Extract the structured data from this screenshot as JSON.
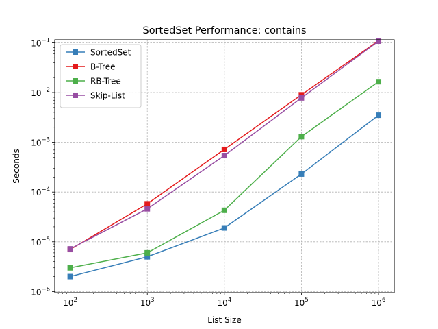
{
  "chart_data": {
    "type": "line",
    "title": "SortedSet Performance: contains",
    "xlabel": "List Size",
    "ylabel": "Seconds",
    "x_scale": "log",
    "y_scale": "log",
    "xlim": [
      63,
      1600000
    ],
    "ylim": [
      9.5e-07,
      0.115
    ],
    "x": [
      100,
      1000,
      10000,
      100000,
      1000000
    ],
    "x_ticks": [
      {
        "value": 100,
        "base": "10",
        "exp": "2"
      },
      {
        "value": 1000,
        "base": "10",
        "exp": "3"
      },
      {
        "value": 10000,
        "base": "10",
        "exp": "4"
      },
      {
        "value": 100000,
        "base": "10",
        "exp": "5"
      },
      {
        "value": 1000000,
        "base": "10",
        "exp": "6"
      }
    ],
    "y_ticks": [
      {
        "value": 1e-06,
        "base": "10",
        "exp": "−6"
      },
      {
        "value": 1e-05,
        "base": "10",
        "exp": "−5"
      },
      {
        "value": 0.0001,
        "base": "10",
        "exp": "−4"
      },
      {
        "value": 0.001,
        "base": "10",
        "exp": "−3"
      },
      {
        "value": 0.01,
        "base": "10",
        "exp": "−2"
      },
      {
        "value": 0.1,
        "base": "10",
        "exp": "−1"
      }
    ],
    "grid": true,
    "legend_position": "top-left",
    "series": [
      {
        "name": "SortedSet",
        "color": "#377eb8",
        "marker": "square",
        "values": [
          2e-06,
          5e-06,
          1.9e-05,
          0.00023,
          0.0035
        ]
      },
      {
        "name": "B-Tree",
        "color": "#e41a1c",
        "marker": "square",
        "values": [
          7e-06,
          5.8e-05,
          0.00072,
          0.009,
          0.11
        ]
      },
      {
        "name": "RB-Tree",
        "color": "#4daf4a",
        "marker": "square",
        "values": [
          3e-06,
          6e-06,
          4.3e-05,
          0.0013,
          0.0165
        ]
      },
      {
        "name": "Skip-List",
        "color": "#984ea3",
        "marker": "square",
        "values": [
          7.2e-06,
          4.6e-05,
          0.00054,
          0.0078,
          0.108
        ]
      }
    ]
  }
}
